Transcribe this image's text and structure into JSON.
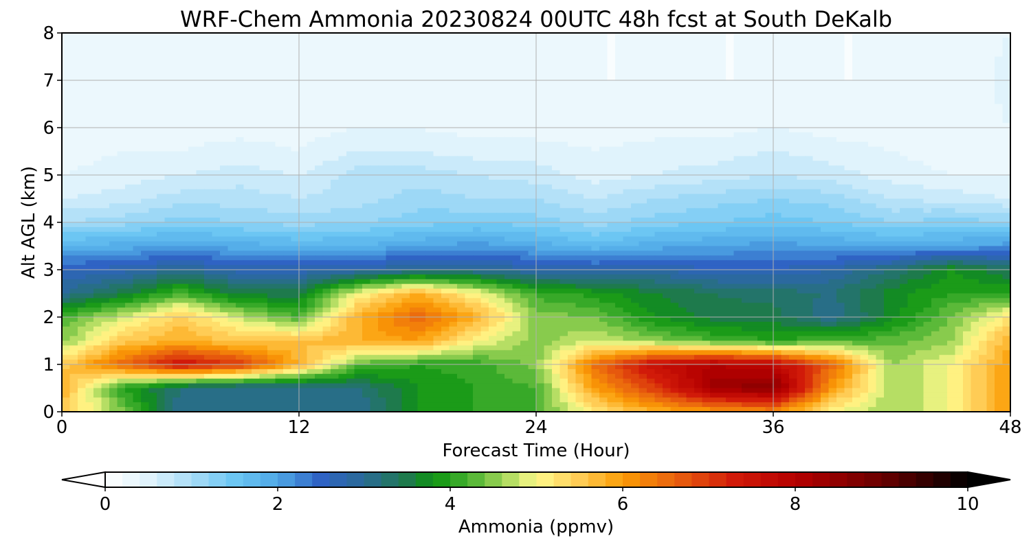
{
  "chart_data": {
    "type": "heatmap",
    "title": "WRF-Chem Ammonia  20230824 00UTC 48h fcst at South DeKalb",
    "xlabel": "Forecast Time (Hour)",
    "ylabel": "Alt AGL (km)",
    "xlim": [
      0,
      48
    ],
    "ylim": [
      0,
      8
    ],
    "x_ticks": [
      "0",
      "12",
      "24",
      "36",
      "48"
    ],
    "y_ticks": [
      "0",
      "1",
      "2",
      "3",
      "4",
      "5",
      "6",
      "7",
      "8"
    ],
    "grid": true,
    "colorbar": {
      "label": "Ammonia  (ppmv)",
      "range": [
        0,
        10
      ],
      "ticks": [
        "0",
        "2",
        "4",
        "6",
        "8",
        "10"
      ],
      "extend": "both",
      "stops": [
        {
          "v": 0.0,
          "c": "#ffffff"
        },
        {
          "v": 0.5,
          "c": "#e0f3fc"
        },
        {
          "v": 1.0,
          "c": "#a9ddf7"
        },
        {
          "v": 1.5,
          "c": "#6cc6f3"
        },
        {
          "v": 2.0,
          "c": "#4fa8e6"
        },
        {
          "v": 2.5,
          "c": "#2f63c4"
        },
        {
          "v": 3.0,
          "c": "#2a6b96"
        },
        {
          "v": 3.5,
          "c": "#1e7a4c"
        },
        {
          "v": 3.8,
          "c": "#0d9410"
        },
        {
          "v": 4.2,
          "c": "#45b030"
        },
        {
          "v": 4.6,
          "c": "#9ed456"
        },
        {
          "v": 5.0,
          "c": "#fffa8c"
        },
        {
          "v": 5.5,
          "c": "#ffcc55"
        },
        {
          "v": 6.0,
          "c": "#fb9c05"
        },
        {
          "v": 6.6,
          "c": "#e9620e"
        },
        {
          "v": 7.3,
          "c": "#d11a09"
        },
        {
          "v": 8.0,
          "c": "#b50000"
        },
        {
          "v": 9.0,
          "c": "#6a0000"
        },
        {
          "v": 10.0,
          "c": "#000000"
        }
      ]
    },
    "altitudes_km": [
      0,
      0.5,
      1,
      1.5,
      2,
      2.5,
      3,
      3.5,
      4,
      4.5,
      5,
      5.5,
      6,
      7,
      8
    ],
    "hours": [
      0,
      3,
      6,
      9,
      12,
      15,
      18,
      21,
      24,
      27,
      30,
      33,
      36,
      39,
      42,
      45,
      48
    ],
    "ammonia_ppmv": [
      [
        5.5,
        4.5,
        3.0,
        3.0,
        3.0,
        3.0,
        3.8,
        4.0,
        4.2,
        5.2,
        5.8,
        6.0,
        6.2,
        5.0,
        4.6,
        5.0,
        6.0
      ],
      [
        5.8,
        4.0,
        3.2,
        3.0,
        3.0,
        3.2,
        3.8,
        4.0,
        4.2,
        6.0,
        7.0,
        8.3,
        8.6,
        6.0,
        4.6,
        5.0,
        6.0
      ],
      [
        5.5,
        6.5,
        7.5,
        7.0,
        5.8,
        4.3,
        4.0,
        4.1,
        4.5,
        6.5,
        7.6,
        8.0,
        7.8,
        6.5,
        4.6,
        5.0,
        6.0
      ],
      [
        4.5,
        5.5,
        5.8,
        5.5,
        5.6,
        5.8,
        6.0,
        5.0,
        4.5,
        4.8,
        4.5,
        4.2,
        4.0,
        4.2,
        4.3,
        4.6,
        5.8
      ],
      [
        4.2,
        4.8,
        5.5,
        4.8,
        4.2,
        5.8,
        6.6,
        5.8,
        4.5,
        4.4,
        3.8,
        3.5,
        3.5,
        3.0,
        3.7,
        4.4,
        5.2
      ],
      [
        3.0,
        3.5,
        4.2,
        3.5,
        3.5,
        5.0,
        5.8,
        5.0,
        4.1,
        3.9,
        3.6,
        3.4,
        3.3,
        3.2,
        3.7,
        4.0,
        4.0
      ],
      [
        2.6,
        2.7,
        3.0,
        2.7,
        2.7,
        2.8,
        3.0,
        3.0,
        2.8,
        2.7,
        2.8,
        2.6,
        2.6,
        2.8,
        3.2,
        3.8,
        3.4
      ],
      [
        1.8,
        1.9,
        2.0,
        1.9,
        1.8,
        1.8,
        2.0,
        2.1,
        1.9,
        1.7,
        1.9,
        2.0,
        2.1,
        2.0,
        1.9,
        2.0,
        2.1
      ],
      [
        1.0,
        1.1,
        1.3,
        1.2,
        1.1,
        1.2,
        1.3,
        1.4,
        1.3,
        1.1,
        1.3,
        1.4,
        1.5,
        1.4,
        1.2,
        1.3,
        1.2
      ],
      [
        0.6,
        0.7,
        0.9,
        0.9,
        0.8,
        0.9,
        1.1,
        1.0,
        1.0,
        0.8,
        1.0,
        1.1,
        1.2,
        1.1,
        0.8,
        0.7,
        0.6
      ],
      [
        0.4,
        0.5,
        0.6,
        0.7,
        0.6,
        0.9,
        0.9,
        0.8,
        0.7,
        0.5,
        0.6,
        0.7,
        0.8,
        0.7,
        0.5,
        0.4,
        0.4
      ],
      [
        0.3,
        0.4,
        0.4,
        0.5,
        0.4,
        0.6,
        0.6,
        0.5,
        0.5,
        0.4,
        0.5,
        0.5,
        0.6,
        0.5,
        0.4,
        0.3,
        0.3
      ],
      [
        0.2,
        0.3,
        0.3,
        0.3,
        0.3,
        0.4,
        0.4,
        0.3,
        0.3,
        0.3,
        0.3,
        0.3,
        0.4,
        0.3,
        0.3,
        0.2,
        0.4
      ],
      [
        0.2,
        0.2,
        0.2,
        0.2,
        0.2,
        0.3,
        0.2,
        0.2,
        0.2,
        0.2,
        0.2,
        0.2,
        0.2,
        0.2,
        0.2,
        0.2,
        0.5
      ],
      [
        0.3,
        0.4,
        0.3,
        0.2,
        0.2,
        0.2,
        0.2,
        0.2,
        0.2,
        0.2,
        0.2,
        0.2,
        0.2,
        0.2,
        0.2,
        0.2,
        0.4
      ]
    ]
  }
}
